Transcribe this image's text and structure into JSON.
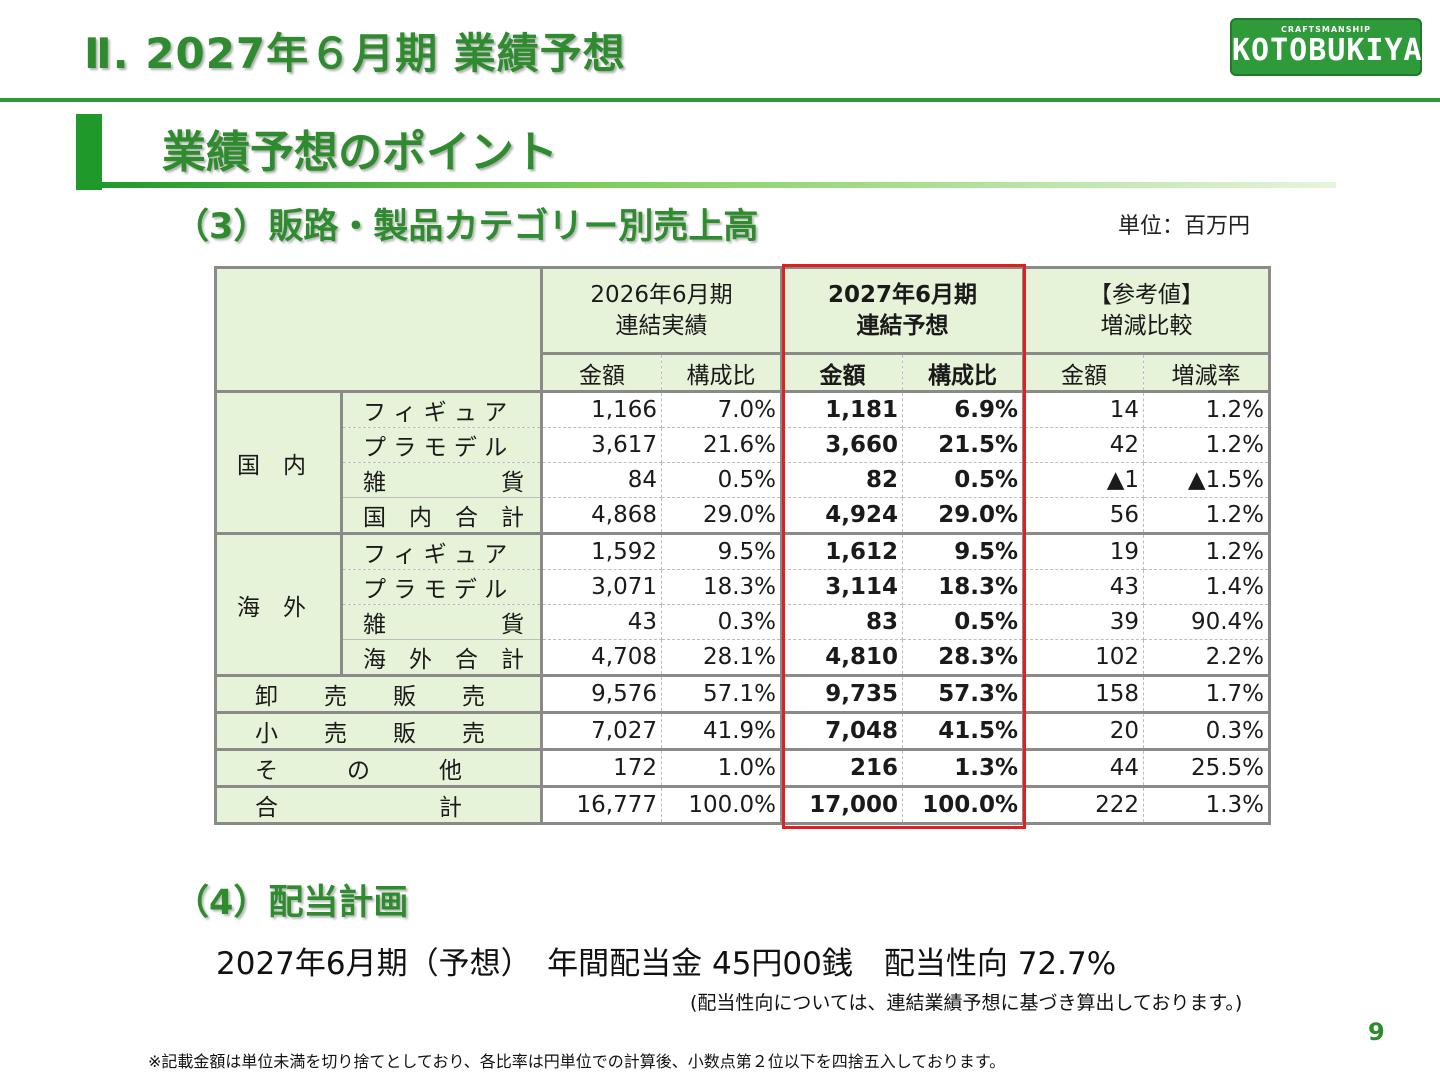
{
  "header": {
    "title": "Ⅱ. 2027年６月期 業績予想",
    "logo_small": "CRAFTSMANSHIP",
    "logo_big": "KOTOBUKIYA"
  },
  "section": {
    "title": "業績予想のポイント"
  },
  "sub3": {
    "title": "（3）販路・製品カテゴリー別売上高",
    "unit": "単位：百万円"
  },
  "table": {
    "col_headers": {
      "actual": "2026年6月期\n連結実績",
      "forecast": "2027年6月期\n連結予想",
      "ref": "【参考値】\n増減比較"
    },
    "sub_headers": [
      "金額",
      "構成比",
      "金額",
      "構成比",
      "金額",
      "増減率"
    ],
    "domestic": {
      "label": "国　内",
      "rows": [
        {
          "item": "フ ィ ギ ュ ア",
          "a": "1,166",
          "ar": "7.0%",
          "f": "1,181",
          "fr": "6.9%",
          "d": "14",
          "dr": "1.2%"
        },
        {
          "item": "プ ラ モ デ ル",
          "a": "3,617",
          "ar": "21.6%",
          "f": "3,660",
          "fr": "21.5%",
          "d": "42",
          "dr": "1.2%"
        },
        {
          "item": "雑　　　　　貨",
          "a": "84",
          "ar": "0.5%",
          "f": "82",
          "fr": "0.5%",
          "d": "▲1",
          "dr": "▲1.5%"
        },
        {
          "item": "国　内　合　計",
          "a": "4,868",
          "ar": "29.0%",
          "f": "4,924",
          "fr": "29.0%",
          "d": "56",
          "dr": "1.2%"
        }
      ]
    },
    "overseas": {
      "label": "海　外",
      "rows": [
        {
          "item": "フ ィ ギ ュ ア",
          "a": "1,592",
          "ar": "9.5%",
          "f": "1,612",
          "fr": "9.5%",
          "d": "19",
          "dr": "1.2%"
        },
        {
          "item": "プ ラ モ デ ル",
          "a": "3,071",
          "ar": "18.3%",
          "f": "3,114",
          "fr": "18.3%",
          "d": "43",
          "dr": "1.4%"
        },
        {
          "item": "雑　　　　　貨",
          "a": "43",
          "ar": "0.3%",
          "f": "83",
          "fr": "0.5%",
          "d": "39",
          "dr": "90.4%"
        },
        {
          "item": "海　外　合　計",
          "a": "4,708",
          "ar": "28.1%",
          "f": "4,810",
          "fr": "28.3%",
          "d": "102",
          "dr": "2.2%"
        }
      ]
    },
    "summary": [
      {
        "label": "卸　　売　　販　　売",
        "a": "9,576",
        "ar": "57.1%",
        "f": "9,735",
        "fr": "57.3%",
        "d": "158",
        "dr": "1.7%"
      },
      {
        "label": "小　　売　　販　　売",
        "a": "7,027",
        "ar": "41.9%",
        "f": "7,048",
        "fr": "41.5%",
        "d": "20",
        "dr": "0.3%"
      },
      {
        "label": "そ　　　の　　　他",
        "a": "172",
        "ar": "1.0%",
        "f": "216",
        "fr": "1.3%",
        "d": "44",
        "dr": "25.5%"
      },
      {
        "label": "合　　　　　　　計",
        "a": "16,777",
        "ar": "100.0%",
        "f": "17,000",
        "fr": "100.0%",
        "d": "222",
        "dr": "1.3%"
      }
    ]
  },
  "sub4": {
    "title": "（4）配当計画",
    "main": "2027年6月期（予想）　年間配当金 45円00銭　配当性向 72.7%",
    "note": "(配当性向については、連結業績予想に基づき算出しております。)"
  },
  "page_number": "9",
  "footnote": "※記載金額は単位未満を切り捨てとしており、各比率は円単位での計算後、小数点第２位以下を四捨五入しております。",
  "colors": {
    "accent": "#2e8b2e",
    "header_bg": "#e6f3d8",
    "highlight": "#e02020"
  }
}
